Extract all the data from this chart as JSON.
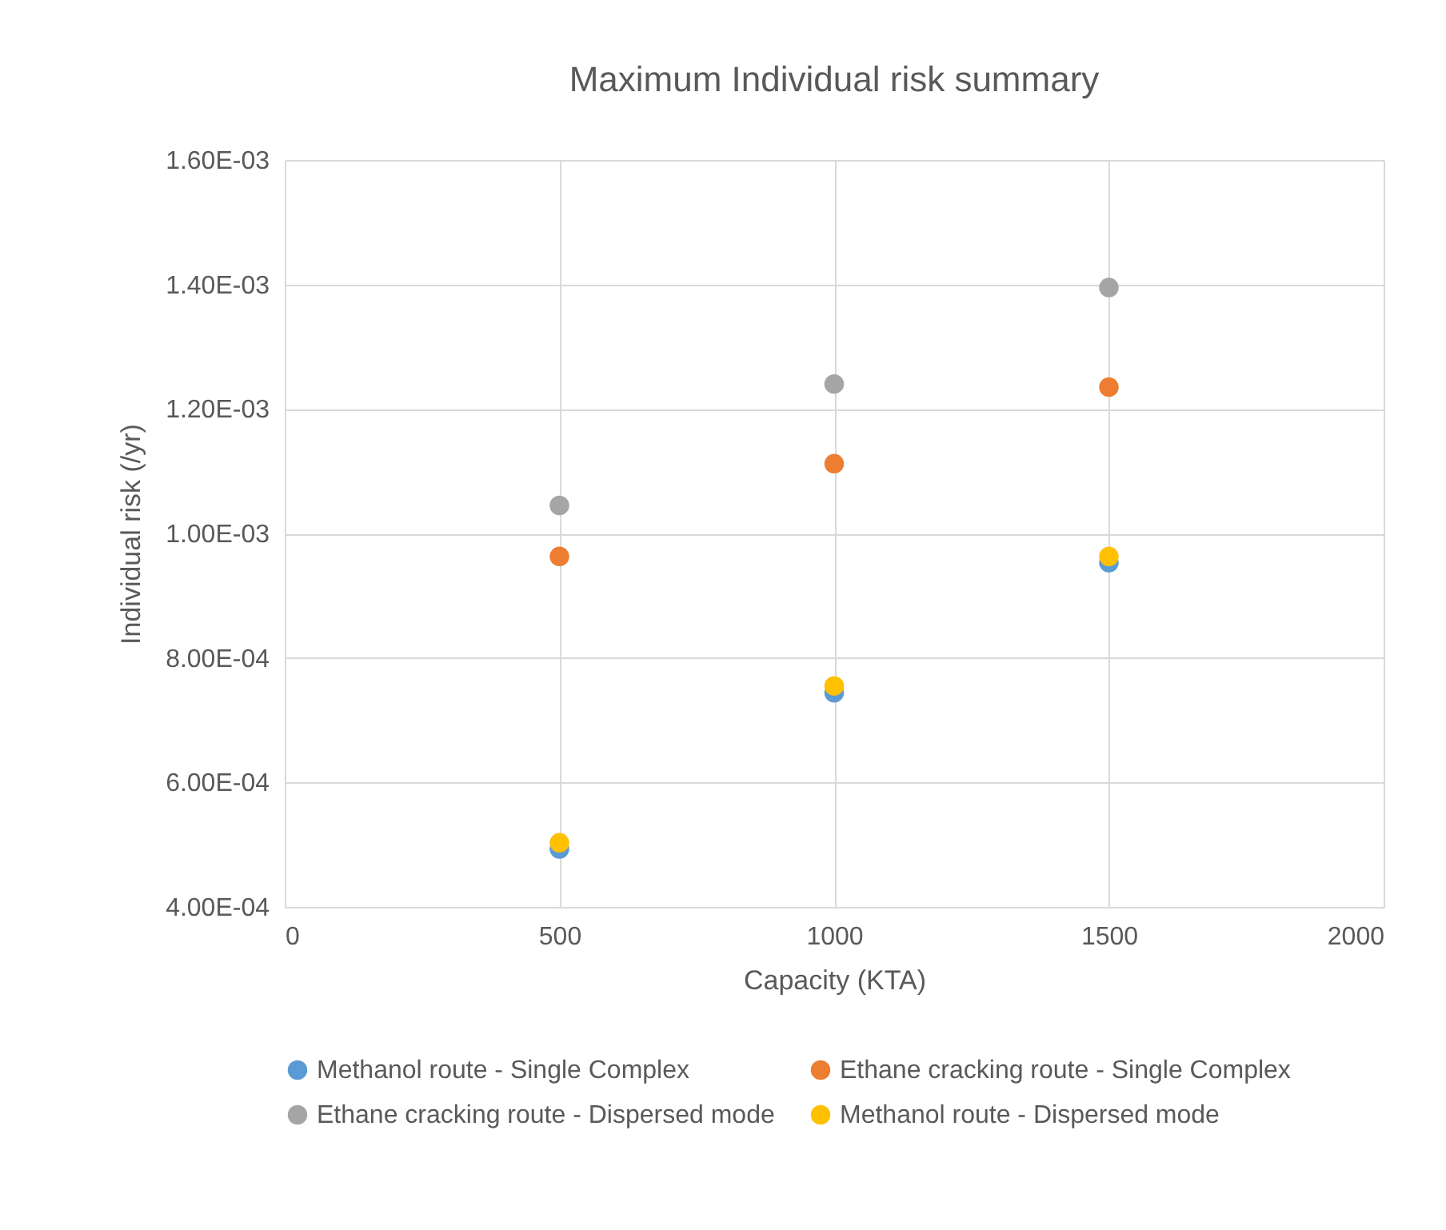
{
  "chart_data": {
    "type": "scatter",
    "title": "Maximum Individual risk summary",
    "xlabel": "Capacity (KTA)",
    "ylabel": "Individual risk (/yr)",
    "x": [
      500,
      1000,
      1500
    ],
    "series": [
      {
        "name": "Methanol route - Single Complex",
        "color": "#5b9bd5",
        "values": [
          0.000493,
          0.000744,
          0.000953
        ]
      },
      {
        "name": "Ethane cracking route - Single Complex",
        "color": "#ed7d31",
        "values": [
          0.000963,
          0.001112,
          0.001235
        ]
      },
      {
        "name": "Ethane cracking route - Dispersed mode",
        "color": "#a5a5a5",
        "values": [
          0.001045,
          0.00124,
          0.001395
        ]
      },
      {
        "name": "Methanol route - Dispersed mode",
        "color": "#ffc000",
        "values": [
          0.000503,
          0.000755,
          0.000963
        ]
      }
    ],
    "xlim": [
      0,
      2000
    ],
    "xticks": [
      0,
      500,
      1000,
      1500,
      2000
    ],
    "ylim": [
      0.0004,
      0.0016
    ],
    "yticks": [
      {
        "value": 0.0004,
        "label": "4.00E-04"
      },
      {
        "value": 0.0006,
        "label": "6.00E-04"
      },
      {
        "value": 0.0008,
        "label": "8.00E-04"
      },
      {
        "value": 0.001,
        "label": "1.00E-03"
      },
      {
        "value": 0.0012,
        "label": "1.20E-03"
      },
      {
        "value": 0.0014,
        "label": "1.40E-03"
      },
      {
        "value": 0.0016,
        "label": "1.60E-03"
      }
    ],
    "grid": true,
    "legend": "bottom",
    "marker": "circle"
  }
}
